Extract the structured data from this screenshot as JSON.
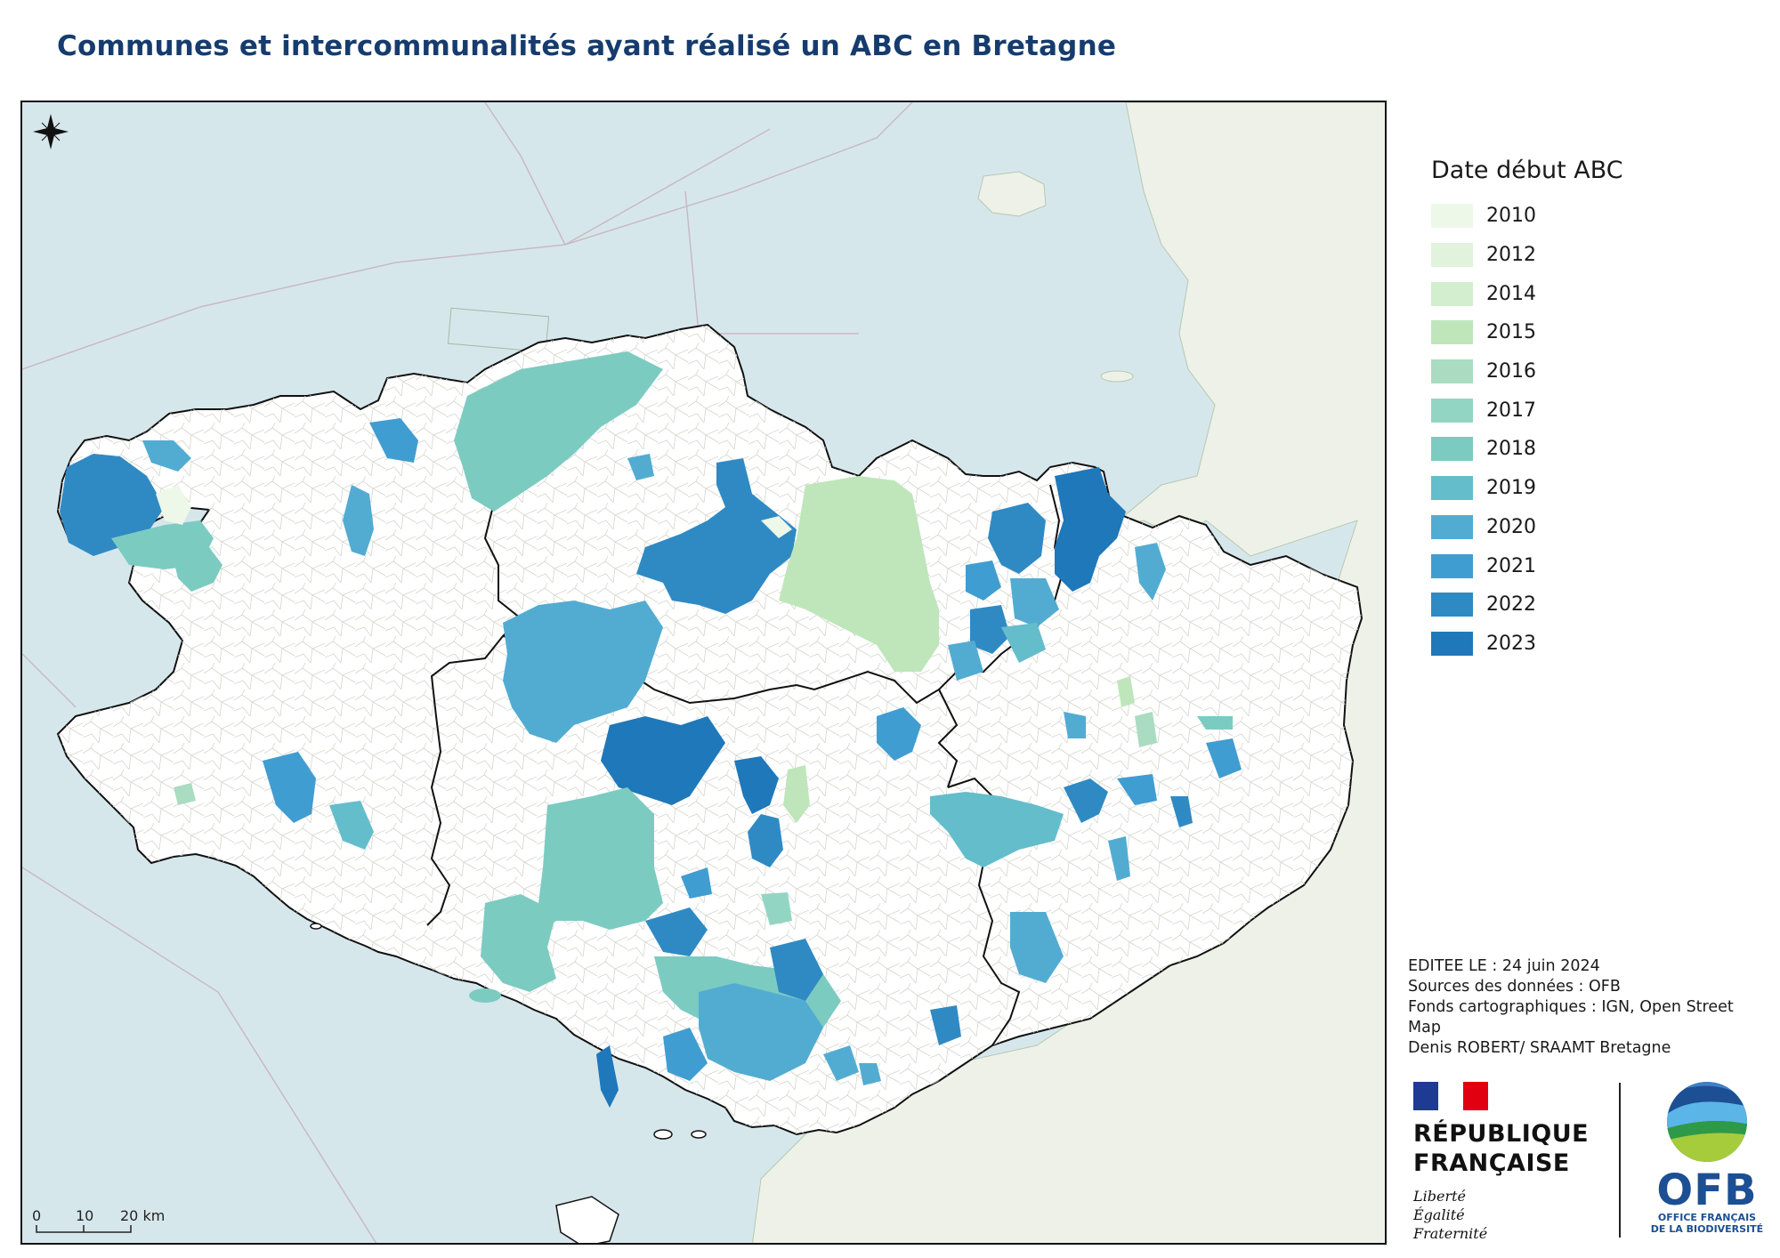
{
  "title": "Communes et intercommunalités ayant réalisé un ABC en Bretagne",
  "legend": {
    "title": "Date début ABC",
    "items": [
      {
        "label": "2010",
        "color": "#edf8e9"
      },
      {
        "label": "2012",
        "color": "#e1f3dc"
      },
      {
        "label": "2014",
        "color": "#d2eecf"
      },
      {
        "label": "2015",
        "color": "#bfe6bb"
      },
      {
        "label": "2016",
        "color": "#a9dcc0"
      },
      {
        "label": "2017",
        "color": "#93d5c3"
      },
      {
        "label": "2018",
        "color": "#7ccbc1"
      },
      {
        "label": "2019",
        "color": "#64bdcb"
      },
      {
        "label": "2020",
        "color": "#52acd2"
      },
      {
        "label": "2021",
        "color": "#409dd1"
      },
      {
        "label": "2022",
        "color": "#2f8ac4"
      },
      {
        "label": "2023",
        "color": "#1f78b9"
      }
    ]
  },
  "credits": {
    "edited": "EDITEE LE : 24 juin 2024",
    "sources": "Sources des données : OFB",
    "basemaps_line1": "Fonds cartographiques : IGN, Open Street",
    "basemaps_line2": "Map",
    "author": "Denis ROBERT/ SRAAMT Bretagne"
  },
  "scale_bar": {
    "labels": [
      "0",
      "10",
      "20 km"
    ]
  },
  "logos": {
    "republique_line1": "RÉPUBLIQUE",
    "republique_line2": "FRANÇAISE",
    "motto": [
      "Liberté",
      "Égalité",
      "Fraternité"
    ],
    "ofb_abbrev": "OFB",
    "ofb_line1": "OFFICE FRANÇAIS",
    "ofb_line2": "DE LA BIODIVERSITÉ"
  },
  "map_colors": {
    "sea": "#d6e7ec",
    "land": "#ffffff",
    "neighbour_land": "#eef1e8",
    "commune_border": "#d5d5cc",
    "outline": "#111111"
  }
}
